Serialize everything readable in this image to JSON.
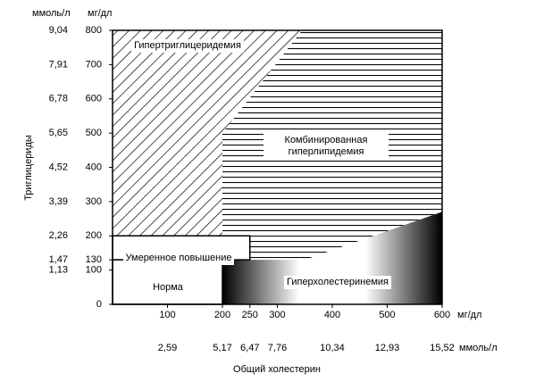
{
  "chart_data": {
    "type": "area-regions",
    "x_label": "Общий холестерин",
    "y_label": "Триглицериды",
    "x_unit": "мг/дл",
    "x_unit2": "ммоль/л",
    "y_unit": "мг/дл",
    "y_unit2": "ммоль/л",
    "xlim": [
      0,
      600
    ],
    "ylim": [
      0,
      800
    ],
    "xticks": [
      100,
      200,
      250,
      300,
      400,
      500,
      600
    ],
    "xticks2": [
      {
        "value": 100,
        "label": "2,59"
      },
      {
        "value": 200,
        "label": "5,17"
      },
      {
        "value": 250,
        "label": "6,47"
      },
      {
        "value": 300,
        "label": "7,76"
      },
      {
        "value": 400,
        "label": "10,34"
      },
      {
        "value": 500,
        "label": "12,93"
      },
      {
        "value": 600,
        "label": "15,52"
      }
    ],
    "yticks": [
      0,
      100,
      130,
      200,
      300,
      400,
      500,
      600,
      700,
      800
    ],
    "yticks2": [
      {
        "value": 100,
        "label": "1,13"
      },
      {
        "value": 130,
        "label": "1,47"
      },
      {
        "value": 200,
        "label": "2,26"
      },
      {
        "value": 300,
        "label": "3,39"
      },
      {
        "value": 400,
        "label": "4,52"
      },
      {
        "value": 500,
        "label": "5,65"
      },
      {
        "value": 600,
        "label": "6,78"
      },
      {
        "value": 700,
        "label": "7,91"
      },
      {
        "value": 800,
        "label": "9,04"
      }
    ],
    "regions": [
      {
        "name": "Гипертриглицеридемия",
        "fill": "hatch-diagonal",
        "x": [
          0,
          0,
          345,
          200,
          200
        ],
        "y": [
          200,
          800,
          800,
          500,
          200
        ]
      },
      {
        "name": "Комбинированная гиперлипидемия",
        "fill": "hatch-horizontal",
        "x": [
          200,
          345,
          600,
          600,
          350,
          250,
          250,
          200
        ],
        "y": [
          500,
          800,
          800,
          270,
          130,
          130,
          200,
          200
        ]
      },
      {
        "name": "Гиперхолестеринемия",
        "fill": "gradient",
        "x": [
          200,
          600,
          600,
          350,
          200
        ],
        "y": [
          0,
          0,
          270,
          130,
          130
        ]
      },
      {
        "name": "Умеренное повышение",
        "fill": "white",
        "x": [
          0,
          250,
          250,
          0
        ],
        "y": [
          130,
          130,
          200,
          200
        ]
      },
      {
        "name": "Норма",
        "fill": "white",
        "x": [
          0,
          200,
          200,
          0
        ],
        "y": [
          0,
          0,
          130,
          130
        ]
      }
    ]
  }
}
